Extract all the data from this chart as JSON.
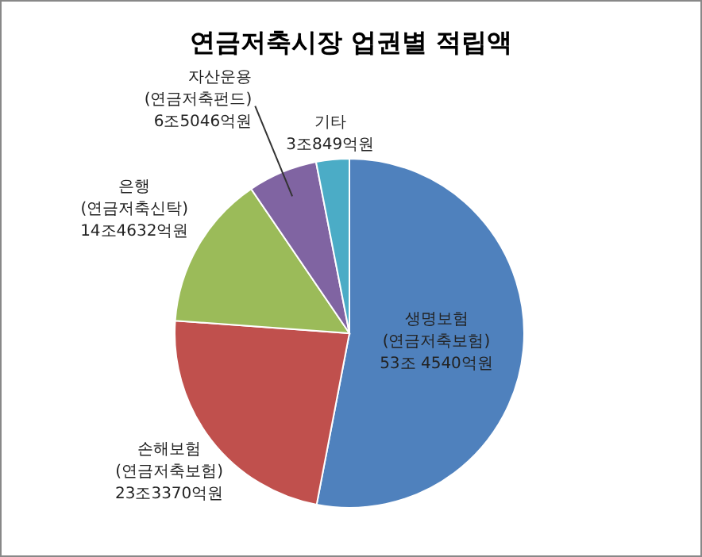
{
  "chart_data": {
    "type": "pie",
    "title": "연금저축시장 업권별 적립액",
    "categories": [
      "생명보험\n(연금저축보험)",
      "손해보험\n(연금저축보험)",
      "은행\n(연금저축신탁)",
      "자산운용\n(연금저축펀드)",
      "기타"
    ],
    "values": [
      53.007,
      23.142,
      14.342,
      6.45,
      3.059
    ],
    "value_labels": [
      "53조 4540억원",
      "23조3370억원",
      "14조4632억원",
      "6조5046억원",
      "3조849억원"
    ],
    "colors": [
      "#4f81bd",
      "#c0504d",
      "#9bbb59",
      "#8064a2",
      "#4bacc6"
    ]
  }
}
